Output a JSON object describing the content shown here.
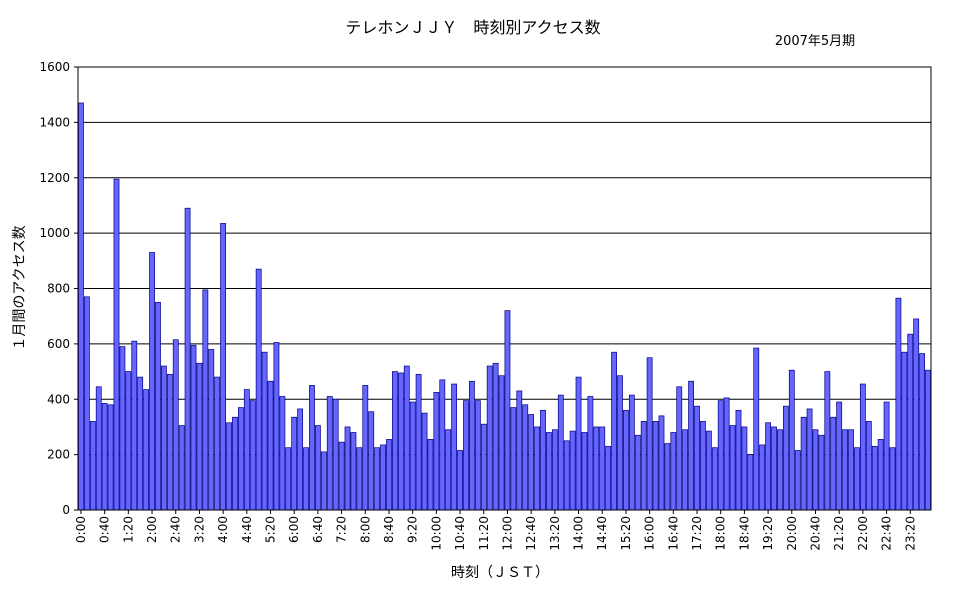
{
  "chart_data": {
    "type": "bar",
    "title": "テレホンＪＪＹ　時刻別アクセス数",
    "subtitle": "2007年5月期",
    "xlabel": "時刻（ＪＳＴ）",
    "ylabel": "１月間のアクセス数",
    "ylim": [
      0,
      1600
    ],
    "yticks": [
      0,
      200,
      400,
      600,
      800,
      1000,
      1200,
      1400,
      1600
    ],
    "grid": true,
    "bar_color": "#6666ff",
    "bar_edge_color": "#000080",
    "series": [
      {
        "values": [
          1470,
          770,
          320,
          445,
          385,
          380,
          1195,
          590,
          500,
          610,
          480,
          435,
          930,
          750,
          520,
          490,
          615,
          305,
          1090,
          595,
          530,
          795,
          580,
          480,
          1035,
          315,
          335,
          370,
          435,
          395,
          870,
          570,
          465,
          605,
          410,
          225,
          335,
          365,
          225,
          450,
          305,
          210,
          410,
          400,
          245,
          300,
          280,
          225,
          450,
          355,
          225,
          235,
          255,
          500,
          495,
          520,
          390,
          490,
          350,
          255,
          425,
          470,
          290,
          455,
          215,
          395,
          465,
          395,
          310,
          520,
          530,
          485,
          720,
          370,
          430,
          380,
          345,
          300,
          360,
          280,
          290,
          415,
          250,
          285,
          480,
          280,
          410,
          300,
          300,
          230,
          570,
          485,
          360,
          415,
          270,
          320,
          550,
          320,
          340,
          240,
          280,
          445,
          290,
          465,
          375,
          320,
          285,
          225,
          395,
          405,
          305,
          360,
          300,
          200,
          585,
          235,
          315,
          300,
          290,
          375,
          505,
          215,
          335,
          365,
          290,
          270,
          500,
          335,
          390,
          290,
          290,
          225,
          455,
          320,
          230,
          255,
          390,
          225,
          765,
          570,
          635,
          690,
          565,
          505
        ]
      }
    ],
    "x_tick_labels": [
      "0:00",
      "0:40",
      "1:20",
      "2:00",
      "2:40",
      "3:20",
      "4:00",
      "4:40",
      "5:20",
      "6:00",
      "6:40",
      "7:20",
      "8:00",
      "8:40",
      "9:20",
      "10:00",
      "10:40",
      "11:20",
      "12:00",
      "12:40",
      "13:20",
      "14:00",
      "14:40",
      "15:20",
      "16:00",
      "16:40",
      "17:20",
      "18:00",
      "18:40",
      "19:20",
      "20:00",
      "20:40",
      "21:20",
      "22:00",
      "22:40",
      "23:20"
    ],
    "x_tick_every": 4
  }
}
